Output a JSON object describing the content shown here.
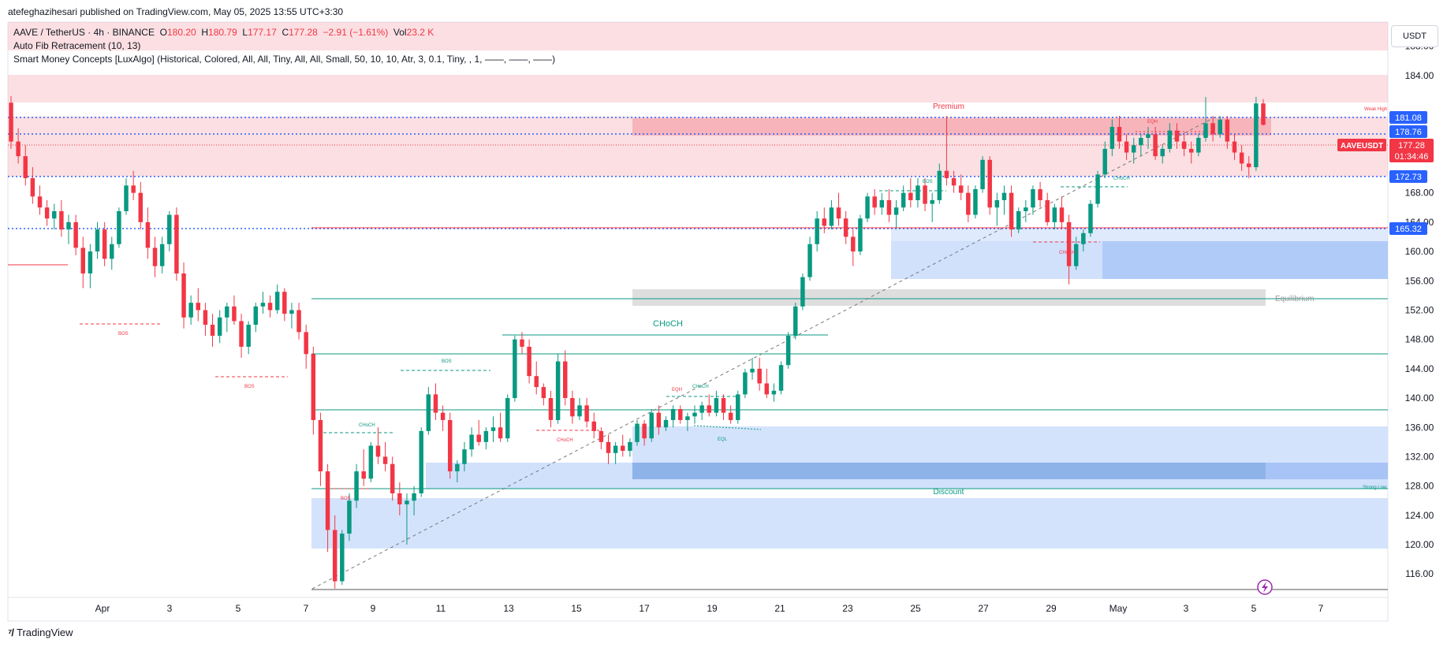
{
  "header": {
    "published": "atefeghazihesari published on TradingView.com, May 05, 2025 13:55 UTC+3:30"
  },
  "legend": {
    "symbol": "AAVE / TetherUS · 4h · BINANCE",
    "o_label": "O",
    "o": "180.20",
    "h_label": "H",
    "h": "180.79",
    "l_label": "L",
    "l": "177.17",
    "c_label": "C",
    "c": "177.28",
    "change": "−2.91 (−1.61%)",
    "vol_label": "Vol",
    "vol": "23.2 K",
    "indicator1": "Auto Fib Retracement (10, 13)",
    "indicator2": "Smart Money Concepts [LuxAlgo] (Historical, Colored, All, All, Tiny, All, All, Small, 50, 10, 10, Atr, 3, 0.1, Tiny, , 1, ——, ——, ——)"
  },
  "currency": "USDT",
  "footer": {
    "brand": "TradingView"
  },
  "colors": {
    "up": "#089981",
    "down": "#f23645",
    "fib_blue": "#2962ff",
    "premium_zone": "#f7c5cb",
    "discount_zone": "#c9dcfb",
    "equilibrium_zone": "#c8c8c8",
    "ob_bear": "#f5a6ad",
    "ob_bull": "#a9c5f7",
    "smc_teal": "#089981",
    "smc_red": "#f23645"
  },
  "price_labels": {
    "p181": "181.08",
    "p178": "178.76",
    "p172": "172.73",
    "p165": "165.32",
    "last_symbol": "AAVEUSDT",
    "last_price": "177.28",
    "countdown": "01:34:46"
  },
  "annotations": {
    "premium": "Premium",
    "discount": "Discount",
    "equilibrium": "Equilibrium",
    "choch_big": "CHoCH",
    "weak_high": "Weak High",
    "strong_low": "Strong Low",
    "bos": "BOS",
    "choch": "CHoCH",
    "eqh": "EQH",
    "eql": "EQL"
  },
  "chart_data": {
    "type": "candlestick",
    "symbol": "AAVE / TetherUS",
    "interval": "4h",
    "exchange": "BINANCE",
    "y_axis": {
      "ticks": [
        116,
        120,
        124,
        128,
        132,
        136,
        140,
        144,
        148,
        152,
        156,
        160,
        164,
        168,
        184,
        188
      ],
      "range": [
        112.8,
        191.3
      ]
    },
    "x_axis": {
      "ticks": [
        "Apr",
        "3",
        "5",
        "7",
        "9",
        "11",
        "13",
        "15",
        "17",
        "19",
        "21",
        "23",
        "25",
        "27",
        "29",
        "May",
        "3",
        "5",
        "7"
      ]
    },
    "fib_levels": [
      181.08,
      178.76,
      172.73,
      165.32
    ],
    "zones": {
      "premium": [
        172.7,
        181.1
      ],
      "equilibrium": [
        154.6,
        156.4
      ],
      "discount": [
        120,
        127
      ]
    },
    "last_price": 177.28,
    "candles": [
      [
        180.3,
        181.2,
        174,
        175
      ],
      [
        175,
        176.8,
        172,
        173
      ],
      [
        173,
        174.5,
        169,
        170
      ],
      [
        170,
        171.5,
        166.5,
        167.5
      ],
      [
        167.5,
        169,
        165,
        166
      ],
      [
        166,
        167,
        163.5,
        164.5
      ],
      [
        164.5,
        166.5,
        163,
        165.5
      ],
      [
        165.5,
        167,
        162,
        163
      ],
      [
        163,
        165,
        161,
        164
      ],
      [
        164,
        165,
        159.5,
        160.5
      ],
      [
        160.5,
        162,
        155,
        157
      ],
      [
        157,
        161,
        155,
        160
      ],
      [
        160,
        164,
        159,
        163
      ],
      [
        163,
        164,
        158,
        159
      ],
      [
        159,
        162,
        157.5,
        161
      ],
      [
        161,
        166,
        160.5,
        165.5
      ],
      [
        165.5,
        170,
        165,
        169
      ],
      [
        169,
        171,
        167,
        168
      ],
      [
        168,
        169.5,
        163,
        164
      ],
      [
        164,
        166,
        159,
        160.5
      ],
      [
        160.5,
        162,
        156.5,
        158
      ],
      [
        158,
        162,
        157,
        161
      ],
      [
        161,
        165.5,
        160,
        165
      ],
      [
        165,
        166,
        156,
        157
      ],
      [
        157,
        158.5,
        149.5,
        151
      ],
      [
        151,
        154,
        150,
        153
      ],
      [
        153,
        155,
        150.5,
        152
      ],
      [
        152,
        153,
        148.5,
        150
      ],
      [
        150,
        151.5,
        147,
        148.5
      ],
      [
        148.5,
        152,
        147.5,
        151
      ],
      [
        151,
        153,
        149,
        152.5
      ],
      [
        152.5,
        154,
        150,
        150.5
      ],
      [
        150.5,
        151.5,
        145.5,
        147
      ],
      [
        147,
        150.5,
        146,
        150
      ],
      [
        150,
        153,
        149,
        152.5
      ],
      [
        152.5,
        154.5,
        151.5,
        153
      ],
      [
        153,
        154,
        151,
        152
      ],
      [
        152,
        155.5,
        151.5,
        154.5
      ],
      [
        154.5,
        155,
        150.5,
        151.5
      ],
      [
        151.5,
        153,
        149.5,
        152
      ],
      [
        152,
        153,
        148,
        149
      ],
      [
        149,
        150,
        144,
        146
      ],
      [
        146,
        147,
        135,
        137
      ],
      [
        137,
        138,
        128,
        130
      ],
      [
        130,
        131,
        119,
        122
      ],
      [
        122,
        124,
        114,
        115
      ],
      [
        115,
        122,
        114.5,
        121.5
      ],
      [
        121.5,
        127,
        120.5,
        126
      ],
      [
        126,
        131,
        125,
        130
      ],
      [
        130,
        133,
        128,
        129
      ],
      [
        129,
        134,
        128.5,
        133.5
      ],
      [
        133.5,
        136,
        131,
        132
      ],
      [
        132,
        134,
        130,
        131
      ],
      [
        131,
        132,
        126,
        127
      ],
      [
        127,
        128.5,
        124,
        125.5
      ],
      [
        125.5,
        127,
        120,
        126
      ],
      [
        126,
        128,
        124,
        127
      ],
      [
        127,
        136,
        126.5,
        135.5
      ],
      [
        135.5,
        141.5,
        135,
        140.5
      ],
      [
        140.5,
        142,
        137,
        138
      ],
      [
        138,
        139,
        135.5,
        137
      ],
      [
        137,
        138,
        129,
        130
      ],
      [
        130,
        131.5,
        128.5,
        131
      ],
      [
        131,
        134,
        130,
        133
      ],
      [
        133,
        136,
        132,
        135
      ],
      [
        135,
        137,
        133.5,
        134
      ],
      [
        134,
        136,
        133,
        135.5
      ],
      [
        135.5,
        137.5,
        134,
        136
      ],
      [
        136,
        138,
        134,
        134.5
      ],
      [
        134.5,
        140.5,
        134,
        140
      ],
      [
        140,
        148.5,
        139.5,
        148
      ],
      [
        148,
        149,
        146,
        147
      ],
      [
        147,
        148,
        142,
        143
      ],
      [
        143,
        145,
        140.5,
        141.5
      ],
      [
        141.5,
        142,
        139,
        140
      ],
      [
        140,
        141,
        136,
        137
      ],
      [
        137,
        146,
        136.5,
        145
      ],
      [
        145,
        146.5,
        139,
        140
      ],
      [
        140,
        141,
        136.5,
        137.5
      ],
      [
        137.5,
        140,
        137,
        139
      ],
      [
        139,
        140,
        136,
        136.8
      ],
      [
        136.8,
        138,
        134.5,
        135.5
      ],
      [
        135.5,
        136,
        133,
        134
      ],
      [
        134,
        135,
        131,
        132.5
      ],
      [
        132.5,
        134,
        131,
        133.5
      ],
      [
        133.5,
        135,
        132,
        132.8
      ],
      [
        132.8,
        134.5,
        132,
        134
      ],
      [
        134,
        137,
        133.5,
        136.5
      ],
      [
        136.5,
        137,
        133.5,
        134.5
      ],
      [
        134.5,
        138.5,
        134,
        138
      ],
      [
        138,
        139,
        135,
        136
      ],
      [
        136,
        137.5,
        135.5,
        137
      ],
      [
        137,
        139,
        136,
        138.5
      ],
      [
        138.5,
        139,
        136.5,
        137
      ],
      [
        137,
        138,
        135.5,
        137.5
      ],
      [
        137.5,
        139,
        136.5,
        138
      ],
      [
        138,
        139.5,
        137,
        139
      ],
      [
        139,
        140.5,
        137.5,
        138
      ],
      [
        138,
        141,
        137.5,
        140
      ],
      [
        140,
        140.5,
        137,
        138
      ],
      [
        138,
        139,
        136.5,
        137
      ],
      [
        137,
        141,
        136.5,
        140.5
      ],
      [
        140.5,
        144,
        140,
        143.5
      ],
      [
        143.5,
        145.5,
        142.5,
        144
      ],
      [
        144,
        145.5,
        141,
        142
      ],
      [
        142,
        144,
        140,
        140.5
      ],
      [
        140.5,
        142,
        139.5,
        141
      ],
      [
        141,
        145,
        140.5,
        144.5
      ],
      [
        144.5,
        149,
        144,
        148.5
      ],
      [
        148.5,
        153,
        148,
        152.5
      ],
      [
        152.5,
        157,
        152,
        156.5
      ],
      [
        156.5,
        162,
        156,
        161
      ],
      [
        161,
        165.5,
        160,
        164.5
      ],
      [
        164.5,
        166,
        162.5,
        163.5
      ],
      [
        163.5,
        167,
        163,
        166
      ],
      [
        166,
        168,
        163.5,
        164.5
      ],
      [
        164.5,
        165.5,
        161,
        162
      ],
      [
        162,
        163,
        158,
        160
      ],
      [
        160,
        165,
        159.5,
        164.5
      ],
      [
        164.5,
        168,
        164,
        167.5
      ],
      [
        167.5,
        168.5,
        165,
        166
      ],
      [
        166,
        168,
        165,
        167
      ],
      [
        167,
        168.5,
        164,
        165
      ],
      [
        165,
        167,
        163,
        166
      ],
      [
        166,
        169,
        165.5,
        168
      ],
      [
        168,
        170,
        166,
        167
      ],
      [
        167,
        170,
        166,
        169
      ],
      [
        169,
        170,
        165.5,
        166.5
      ],
      [
        166.5,
        168,
        164,
        167
      ],
      [
        167,
        172,
        166.5,
        171
      ],
      [
        171,
        178.5,
        169,
        170
      ],
      [
        170,
        171,
        168,
        169
      ],
      [
        169,
        170.5,
        167,
        168
      ],
      [
        168,
        169,
        164,
        165
      ],
      [
        165,
        169,
        164.5,
        168.5
      ],
      [
        168.5,
        173,
        168,
        172.5
      ],
      [
        172.5,
        173,
        165,
        166
      ],
      [
        166,
        168,
        163.5,
        167
      ],
      [
        167,
        169,
        165,
        168
      ],
      [
        168,
        169,
        162,
        163
      ],
      [
        163,
        166,
        162.5,
        165.5
      ],
      [
        165.5,
        167,
        164,
        166
      ],
      [
        166,
        169,
        165,
        168.5
      ],
      [
        168.5,
        169.5,
        166,
        167
      ],
      [
        167,
        168,
        163.5,
        164
      ],
      [
        164,
        166.5,
        163,
        166
      ],
      [
        166,
        167.5,
        163,
        164
      ],
      [
        164,
        165,
        155.5,
        158
      ],
      [
        158,
        162,
        157.5,
        161
      ],
      [
        161,
        163,
        160,
        162.5
      ],
      [
        162.5,
        167,
        162,
        166.5
      ],
      [
        166.5,
        171,
        166,
        170.5
      ],
      [
        170.5,
        175,
        170,
        174
      ],
      [
        174,
        178,
        173,
        177
      ],
      [
        177,
        178.5,
        174,
        175
      ],
      [
        175,
        176,
        172.5,
        173.5
      ],
      [
        173.5,
        175.5,
        172,
        174.5
      ],
      [
        174.5,
        176,
        173,
        175.5
      ],
      [
        175.5,
        177,
        174,
        176
      ],
      [
        176,
        177,
        172.5,
        173
      ],
      [
        173,
        174.5,
        172,
        174
      ],
      [
        174,
        177.5,
        173.5,
        176.5
      ],
      [
        176.5,
        177.5,
        174,
        175
      ],
      [
        175,
        176,
        173,
        174
      ],
      [
        174,
        175,
        172,
        173.5
      ],
      [
        173.5,
        176,
        173,
        175.5
      ],
      [
        175.5,
        181.08,
        175,
        177.5
      ],
      [
        177.5,
        178.5,
        175,
        176
      ],
      [
        176,
        178.5,
        175.5,
        178
      ],
      [
        178,
        178.5,
        174,
        175
      ],
      [
        175,
        176,
        172.5,
        173.5
      ],
      [
        173.5,
        174.5,
        171,
        172
      ],
      [
        172,
        173,
        170,
        171.5
      ],
      [
        171.5,
        181.1,
        171,
        180.2
      ],
      [
        180.2,
        180.79,
        177.17,
        177.28
      ]
    ]
  }
}
